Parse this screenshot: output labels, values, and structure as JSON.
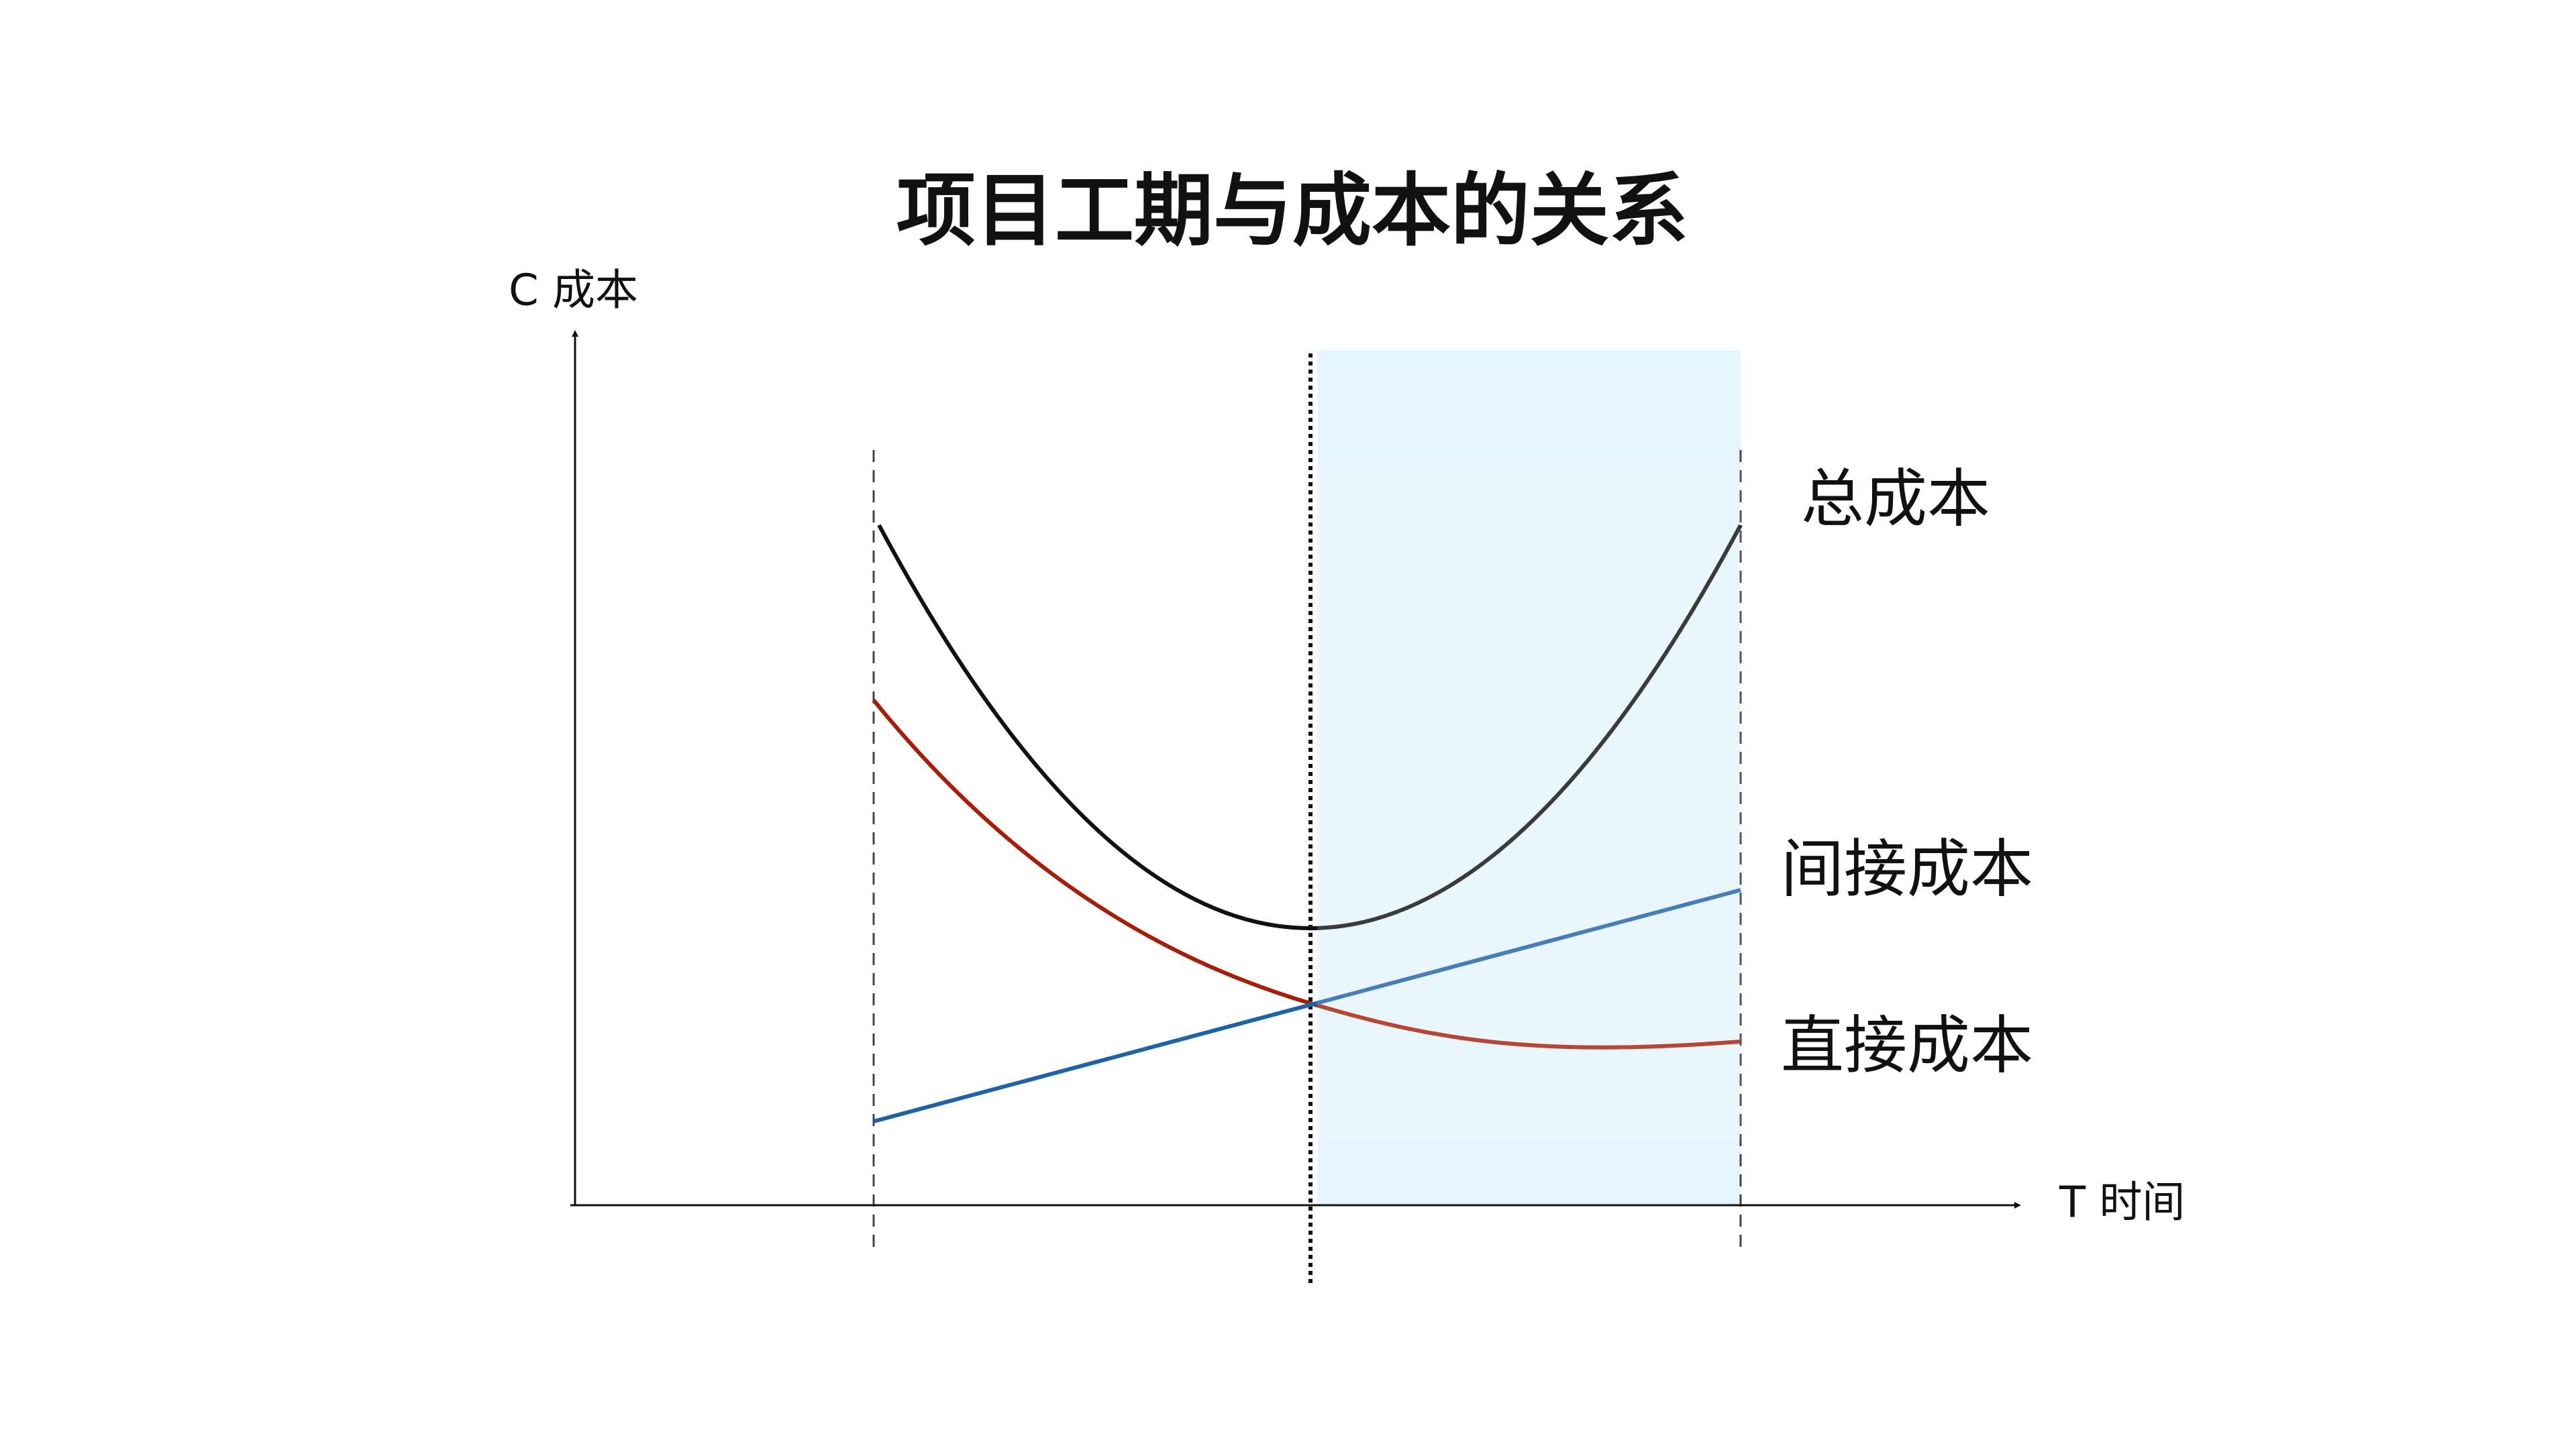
{
  "title": "项目工期与成本的关系",
  "y_axis": {
    "label": "C 成本"
  },
  "x_axis": {
    "label": "T 时间"
  },
  "curves": [
    {
      "label": "总成本"
    },
    {
      "label": "间接成本"
    },
    {
      "label": "直接成本"
    }
  ]
}
